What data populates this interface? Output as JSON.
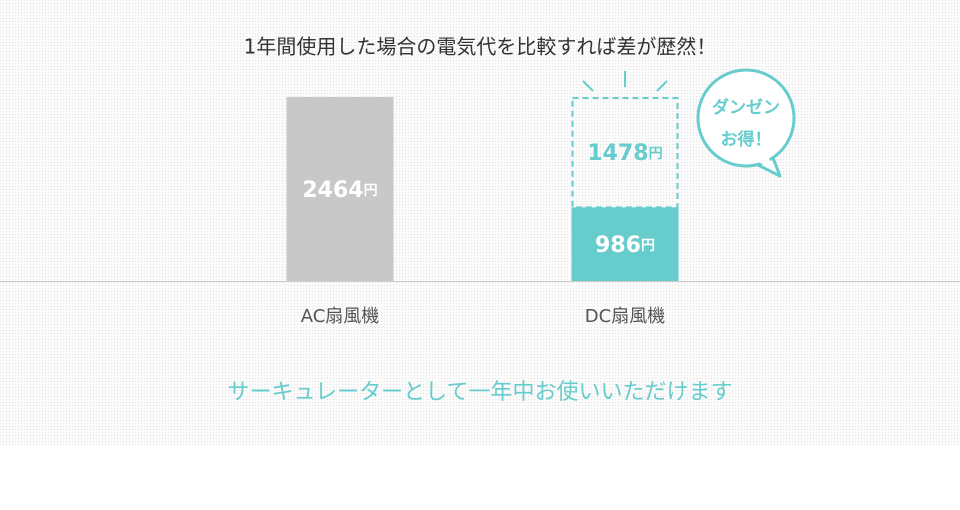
{
  "chart_data": {
    "type": "bar",
    "title": "1年間使用した場合の電気代を比較すれば差が歴然！",
    "categories": [
      "AC扇風機",
      "DC扇風機"
    ],
    "series": [
      {
        "values": [
          2464,
          986
        ],
        "colors": [
          "#c8c8c8",
          "#66cccc"
        ]
      },
      {
        "values": [
          null,
          1478
        ],
        "color": "#66cccc",
        "style": "dashed"
      }
    ],
    "unit": "円",
    "annotation": [
      "ダンゼン",
      "お得！"
    ],
    "footnote": "サーキュレーターとして一年中お使いいただけます"
  }
}
